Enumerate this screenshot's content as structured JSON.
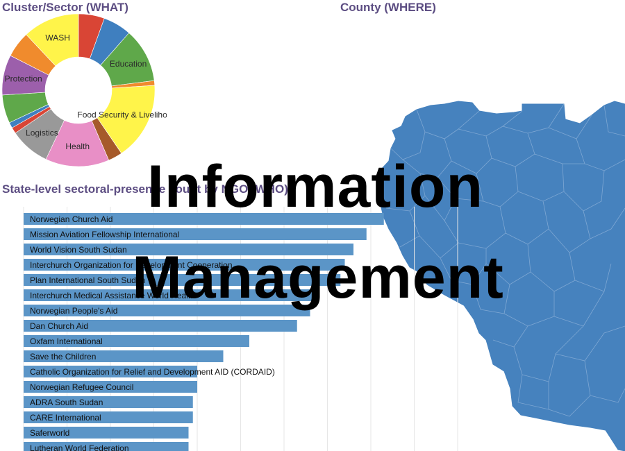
{
  "sections": {
    "what_title": "Cluster/Sector (WHAT)",
    "where_title": "County (WHERE)",
    "who_title": "State-level sectoral-presence count by NGO (WHO)"
  },
  "overlay": {
    "line1": "Information",
    "line2": "Management"
  },
  "colors": {
    "title": "#5c4d82",
    "bar": "#5b95c7",
    "map_fill": "#4682be",
    "map_stroke": "#7ea7d3"
  },
  "chart_data": [
    {
      "type": "pie",
      "variant": "donut",
      "title": "Cluster/Sector (WHAT)",
      "slices": [
        {
          "label": "",
          "value": 5.5,
          "color": "#d94535"
        },
        {
          "label": "",
          "value": 6.0,
          "color": "#3f7fbf"
        },
        {
          "label": "Education",
          "value": 11.5,
          "color": "#5fa84a"
        },
        {
          "label": "",
          "value": 1.0,
          "color": "#f08b2d"
        },
        {
          "label": "Food Security & Livelihoods",
          "value": 16.5,
          "color": "#fff44a"
        },
        {
          "label": "",
          "value": 3.0,
          "color": "#a65a2a"
        },
        {
          "label": "Health",
          "value": 13.5,
          "color": "#e88fc6"
        },
        {
          "label": "Logistics",
          "value": 8.5,
          "color": "#999999"
        },
        {
          "label": "",
          "value": 1.3,
          "color": "#d94535"
        },
        {
          "label": "",
          "value": 1.2,
          "color": "#3f7fbf"
        },
        {
          "label": "",
          "value": 6.0,
          "color": "#5fa84a"
        },
        {
          "label": "Protection",
          "value": 8.5,
          "color": "#9c5fab"
        },
        {
          "label": "",
          "value": 5.5,
          "color": "#f08b2d"
        },
        {
          "label": "WASH",
          "value": 12.0,
          "color": "#fff44a"
        }
      ]
    },
    {
      "type": "bar",
      "orientation": "horizontal",
      "title": "State-level sectoral-presence count by NGO (WHO)",
      "grid": true,
      "xlim": [
        0,
        100
      ],
      "categories": [
        "Norwegian Church Aid",
        "Mission Aviation Fellowship International",
        "World Vision South Sudan",
        "Interchurch Organization for Development Cooperation",
        "Plan International South Sudan",
        "Interchurch Medical Assistance World Health",
        "Norwegian People's Aid",
        "Dan Church Aid",
        "Oxfam International",
        "Save the Children",
        "Catholic Organization for Relief and Development AID (CORDAID)",
        "Norwegian Refugee Council",
        "ADRA South Sudan",
        "CARE International",
        "Saferworld",
        "Lutheran World Federation"
      ],
      "values": [
        83,
        79,
        76,
        74,
        73,
        68,
        66,
        63,
        52,
        46,
        40,
        40,
        39,
        39,
        38,
        38
      ]
    },
    {
      "type": "map",
      "title": "County (WHERE)",
      "region": "South Sudan counties"
    }
  ]
}
